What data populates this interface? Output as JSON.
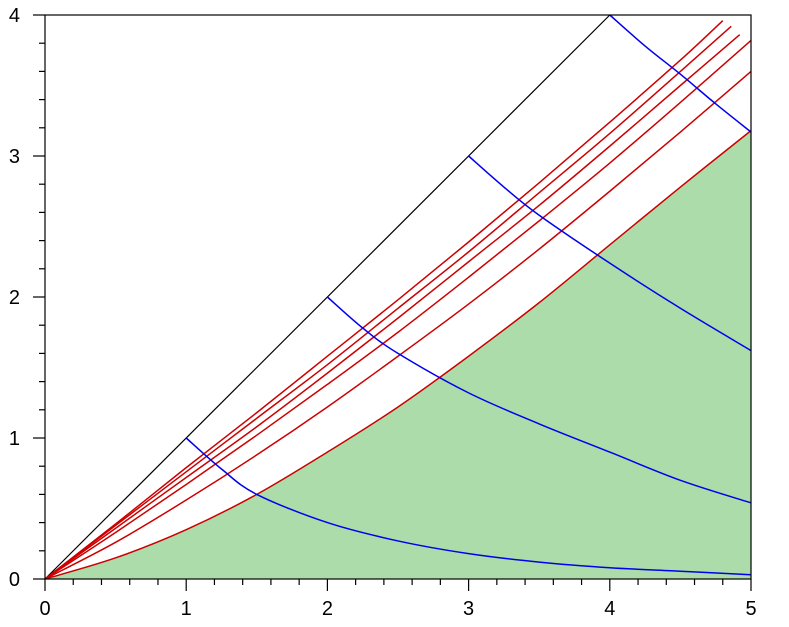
{
  "chart_data": {
    "type": "line",
    "title": "",
    "xlabel": "",
    "ylabel": "",
    "xlim": [
      0,
      5
    ],
    "ylim": [
      0,
      4
    ],
    "grid": false,
    "xticks": [
      "0",
      "1",
      "2",
      "3",
      "4",
      "5"
    ],
    "yticks": [
      "0",
      "1",
      "2",
      "3",
      "4"
    ],
    "x_minor_step": 0.2,
    "y_minor_step": 0.2,
    "colors": {
      "fill": "#acdcaa",
      "diagonal": "#000000",
      "red_curves": "#cc0000",
      "blue_curves": "#0000ee",
      "axes": "#000000"
    },
    "shaded_region": {
      "description_color": "green",
      "upper_boundary_x": [
        0,
        0.5,
        1,
        1.5,
        2,
        2.5,
        3,
        3.5,
        4,
        4.5,
        5
      ],
      "upper_boundary_y": [
        0,
        0.15,
        0.35,
        0.6,
        0.9,
        1.22,
        1.58,
        1.96,
        2.37,
        2.78,
        3.18
      ]
    },
    "series": [
      {
        "group": "diagonal",
        "x": [
          0,
          4
        ],
        "y": [
          0,
          4
        ]
      },
      {
        "group": "red",
        "x": [
          0,
          0.5,
          1,
          1.5,
          2,
          2.5,
          3,
          3.5,
          4,
          4.5,
          5
        ],
        "y": [
          0,
          0.15,
          0.35,
          0.6,
          0.9,
          1.22,
          1.58,
          1.96,
          2.37,
          2.78,
          3.18
        ]
      },
      {
        "group": "red",
        "x": [
          0,
          0.5,
          1,
          1.5,
          2,
          2.5,
          3,
          3.5,
          4,
          4.5,
          5
        ],
        "y": [
          0,
          0.26,
          0.56,
          0.88,
          1.22,
          1.58,
          1.95,
          2.34,
          2.75,
          3.17,
          3.6
        ]
      },
      {
        "group": "red",
        "x": [
          0,
          0.5,
          1,
          1.5,
          2,
          2.5,
          3,
          3.5,
          4,
          4.5,
          5
        ],
        "y": [
          0,
          0.33,
          0.67,
          1.02,
          1.38,
          1.75,
          2.14,
          2.54,
          2.95,
          3.38,
          3.82
        ]
      },
      {
        "group": "red",
        "x": [
          0,
          0.5,
          1,
          1.5,
          2,
          2.5,
          3,
          3.5,
          4,
          4.5,
          4.92
        ],
        "y": [
          0,
          0.36,
          0.72,
          1.08,
          1.46,
          1.85,
          2.25,
          2.65,
          3.07,
          3.5,
          3.86
        ]
      },
      {
        "group": "red",
        "x": [
          0,
          0.5,
          1,
          1.5,
          2,
          2.5,
          3,
          3.5,
          4,
          4.5,
          4.86
        ],
        "y": [
          0,
          0.38,
          0.76,
          1.14,
          1.52,
          1.92,
          2.32,
          2.74,
          3.16,
          3.6,
          3.92
        ]
      },
      {
        "group": "red",
        "x": [
          0,
          0.5,
          1,
          1.5,
          2,
          2.5,
          3,
          3.5,
          4,
          4.5,
          4.8
        ],
        "y": [
          0,
          0.39,
          0.79,
          1.18,
          1.58,
          1.98,
          2.39,
          2.81,
          3.24,
          3.68,
          3.96
        ]
      },
      {
        "group": "blue",
        "x": [
          1,
          1.25,
          1.5,
          2,
          2.5,
          3,
          3.5,
          4,
          4.5,
          5
        ],
        "y": [
          1,
          0.78,
          0.6,
          0.4,
          0.27,
          0.18,
          0.12,
          0.08,
          0.055,
          0.03
        ]
      },
      {
        "group": "blue",
        "x": [
          2,
          2.25,
          2.5,
          3,
          3.5,
          4,
          4.5,
          5
        ],
        "y": [
          2,
          1.78,
          1.6,
          1.32,
          1.1,
          0.9,
          0.7,
          0.54
        ]
      },
      {
        "group": "blue",
        "x": [
          3,
          3.25,
          3.5,
          4,
          4.5,
          5
        ],
        "y": [
          3,
          2.78,
          2.58,
          2.24,
          1.92,
          1.62
        ]
      },
      {
        "group": "blue",
        "x": [
          4,
          4.25,
          4.5,
          4.75,
          5
        ],
        "y": [
          4,
          3.78,
          3.58,
          3.37,
          3.17
        ]
      }
    ]
  }
}
